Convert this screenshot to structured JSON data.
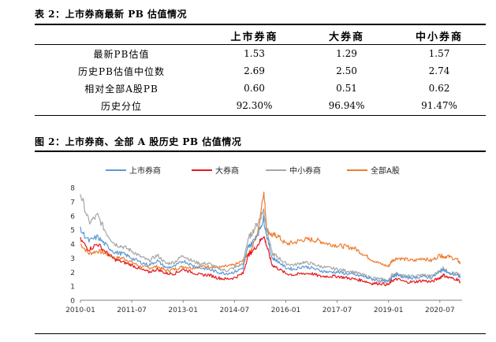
{
  "table_caption": "表 2：上市券商最新 PB 估值情况",
  "table": {
    "columns": [
      "上市券商",
      "大券商",
      "中小券商"
    ],
    "rows": [
      {
        "label": "最新PB估值",
        "values": [
          "1.53",
          "1.29",
          "1.57"
        ]
      },
      {
        "label": "历史PB估值中位数",
        "values": [
          "2.69",
          "2.50",
          "2.74"
        ]
      },
      {
        "label": "相对全部A股PB",
        "values": [
          "0.60",
          "0.51",
          "0.62"
        ]
      },
      {
        "label": "历史分位",
        "values": [
          "92.30%",
          "96.94%",
          "91.47%"
        ]
      }
    ]
  },
  "figure_caption": "图 2：上市券商、全部 A 股历史 PB 估值情况",
  "chart_data": {
    "type": "line",
    "title": "",
    "xlabel": "",
    "ylabel": "",
    "ylim": [
      0,
      8
    ],
    "yticks": [
      "0",
      "1",
      "2",
      "3",
      "4",
      "5",
      "6",
      "7",
      "8"
    ],
    "xticks": [
      "2010-01",
      "2011-07",
      "2013-01",
      "2014-07",
      "2016-01",
      "2017-07",
      "2019-01",
      "2020-07"
    ],
    "xtick_dates": [
      2010.0,
      2011.5,
      2013.0,
      2014.5,
      2016.0,
      2017.5,
      2019.0,
      2020.5
    ],
    "x": [
      2010.0,
      2010.25,
      2010.5,
      2010.75,
      2011.0,
      2011.25,
      2011.5,
      2011.75,
      2012.0,
      2012.25,
      2012.5,
      2012.75,
      2013.0,
      2013.25,
      2013.5,
      2013.75,
      2014.0,
      2014.25,
      2014.5,
      2014.75,
      2014.9,
      2015.0,
      2015.2,
      2015.35,
      2015.45,
      2015.6,
      2015.75,
      2016.0,
      2016.25,
      2016.5,
      2016.75,
      2017.0,
      2017.25,
      2017.5,
      2017.75,
      2018.0,
      2018.25,
      2018.5,
      2018.75,
      2019.0,
      2019.1,
      2019.25,
      2019.5,
      2019.75,
      2020.0,
      2020.25,
      2020.5,
      2020.6,
      2020.75,
      2021.0,
      2021.1
    ],
    "legend_position": "top",
    "series": [
      {
        "name": "上市券商",
        "color": "#5B9BD5",
        "values": [
          5.0,
          4.2,
          4.5,
          3.9,
          3.4,
          3.3,
          3.0,
          2.7,
          2.5,
          2.8,
          2.3,
          2.4,
          2.8,
          2.5,
          2.3,
          2.2,
          2.0,
          1.9,
          2.0,
          2.3,
          3.8,
          4.0,
          4.8,
          5.8,
          4.5,
          3.0,
          2.8,
          2.3,
          2.2,
          2.4,
          2.3,
          2.1,
          2.0,
          2.0,
          1.9,
          1.8,
          1.7,
          1.5,
          1.4,
          1.3,
          1.7,
          1.8,
          1.6,
          1.6,
          1.7,
          1.6,
          2.0,
          2.2,
          1.9,
          1.8,
          1.6
        ]
      },
      {
        "name": "大券商",
        "color": "#E41A1C",
        "values": [
          4.3,
          3.6,
          4.0,
          3.4,
          2.9,
          2.7,
          2.5,
          2.2,
          2.0,
          2.2,
          1.9,
          1.9,
          2.2,
          2.0,
          1.8,
          1.8,
          1.6,
          1.5,
          1.6,
          1.9,
          3.2,
          3.4,
          4.0,
          4.6,
          3.8,
          2.5,
          2.3,
          1.9,
          1.8,
          1.9,
          1.9,
          1.7,
          1.7,
          1.7,
          1.6,
          1.5,
          1.4,
          1.2,
          1.2,
          1.1,
          1.4,
          1.5,
          1.3,
          1.3,
          1.4,
          1.3,
          1.6,
          1.8,
          1.6,
          1.5,
          1.3
        ]
      },
      {
        "name": "中小券商",
        "color": "#A6A6A6",
        "values": [
          7.6,
          5.5,
          6.0,
          4.8,
          4.0,
          3.8,
          3.5,
          3.1,
          2.8,
          3.2,
          2.6,
          2.7,
          3.2,
          2.8,
          2.6,
          2.6,
          2.3,
          2.1,
          2.3,
          2.6,
          4.4,
          4.7,
          5.6,
          6.4,
          5.0,
          3.3,
          3.1,
          2.6,
          2.5,
          2.7,
          2.6,
          2.4,
          2.3,
          2.2,
          2.1,
          2.0,
          1.8,
          1.6,
          1.5,
          1.4,
          1.8,
          1.9,
          1.7,
          1.7,
          1.8,
          1.7,
          2.1,
          2.3,
          2.0,
          1.9,
          1.7
        ]
      },
      {
        "name": "全部A股",
        "color": "#ED7D31",
        "values": [
          4.0,
          3.3,
          3.5,
          3.3,
          3.0,
          3.0,
          2.7,
          2.4,
          2.3,
          2.4,
          2.1,
          2.2,
          2.4,
          2.3,
          2.4,
          2.4,
          2.3,
          2.4,
          2.5,
          2.8,
          3.3,
          3.6,
          5.0,
          7.8,
          5.0,
          4.6,
          4.6,
          4.0,
          4.1,
          4.3,
          4.3,
          4.2,
          4.0,
          3.9,
          3.8,
          3.7,
          3.3,
          2.9,
          2.6,
          2.4,
          2.8,
          3.0,
          2.9,
          2.8,
          3.0,
          2.8,
          3.2,
          3.1,
          3.1,
          2.9,
          2.6
        ]
      }
    ]
  }
}
